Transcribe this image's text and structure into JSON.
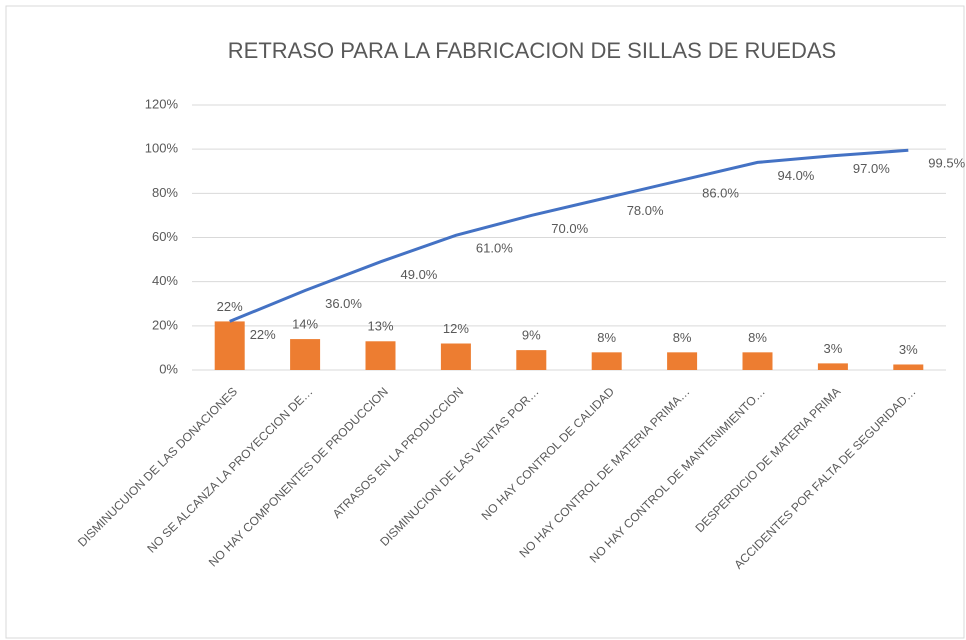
{
  "chart_data": {
    "type": "pareto",
    "title": "RETRASO PARA LA FABRICACION DE SILLAS DE RUEDAS",
    "categories": [
      "DISMINUCUION DE LAS DONACIONES",
      "NO SE ALCANZA LA PROYECCION DE…",
      "NO HAY COMPONENTES DE PRODUCCION",
      "ATRASOS EN LA PRODUCCION",
      "DISMINUCION DE LAS VENTAS POR…",
      "NO HAY CONTROL DE CALIDAD",
      "NO HAY CONTROL DE MATERIA PRIMA…",
      "NO HAY CONTROL DE MANTENIMIENTO…",
      "DESPERDICIO DE MATERIA PRIMA",
      "ACCIDENTES POR FALTA DE SEGURIDAD…"
    ],
    "series": [
      {
        "type": "bar",
        "color": "#ED7D31",
        "values": [
          22,
          14,
          13,
          12,
          9,
          8,
          8,
          8,
          3,
          2.5
        ],
        "value_labels": [
          "22%",
          "14%",
          "13%",
          "12%",
          "9%",
          "8%",
          "8%",
          "8%",
          "3%",
          "3%"
        ]
      },
      {
        "type": "line",
        "color": "#4472C4",
        "values": [
          22,
          36,
          49,
          61,
          70,
          78,
          86,
          94,
          97,
          99.5
        ],
        "value_labels": [
          "22%",
          "36.0%",
          "49.0%",
          "61.0%",
          "70.0%",
          "78.0%",
          "86.0%",
          "94.0%",
          "97.0%",
          "99.5%"
        ]
      }
    ],
    "ylim": [
      0,
      120
    ],
    "yticks": [
      {
        "value": 0,
        "label": "0%"
      },
      {
        "value": 20,
        "label": "20%"
      },
      {
        "value": 40,
        "label": "40%"
      },
      {
        "value": 60,
        "label": "60%"
      },
      {
        "value": 80,
        "label": "80%"
      },
      {
        "value": 100,
        "label": "100%"
      },
      {
        "value": 120,
        "label": "120%"
      }
    ],
    "grid": true
  }
}
